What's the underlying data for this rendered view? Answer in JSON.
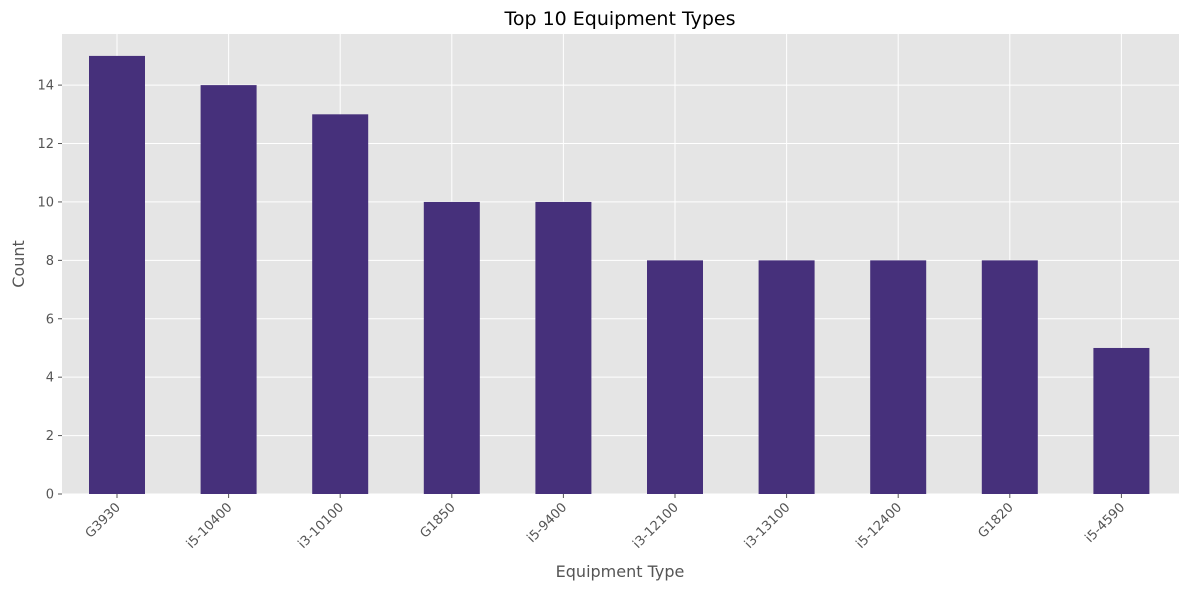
{
  "chart_data": {
    "type": "bar",
    "title": "Top 10 Equipment Types",
    "xlabel": "Equipment Type",
    "ylabel": "Count",
    "categories": [
      "G3930",
      "i5-10400",
      "i3-10100",
      "G1850",
      "i5-9400",
      "i3-12100",
      "i3-13100",
      "i5-12400",
      "G1820",
      "i5-4590"
    ],
    "values": [
      15,
      14,
      13,
      10,
      10,
      8,
      8,
      8,
      8,
      5
    ],
    "ylim": [
      0,
      15.75
    ],
    "yticks": [
      0,
      2,
      4,
      6,
      8,
      10,
      12,
      14
    ],
    "grid": true,
    "legend": "none",
    "colors": {
      "bar": "#46307B",
      "plot_background": "#E5E5E5",
      "grid": "#FFFFFF",
      "tick_mark": "#555555"
    }
  }
}
